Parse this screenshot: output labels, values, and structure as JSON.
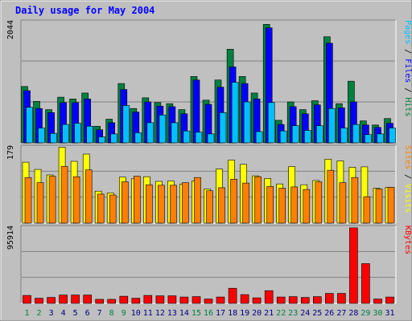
{
  "chart_data": {
    "type": "bar",
    "title": "Daily usage for May 2004",
    "categories": [
      "1",
      "2",
      "3",
      "4",
      "5",
      "6",
      "7",
      "8",
      "9",
      "10",
      "11",
      "12",
      "13",
      "14",
      "15",
      "16",
      "17",
      "18",
      "19",
      "20",
      "21",
      "22",
      "23",
      "24",
      "25",
      "26",
      "27",
      "28",
      "29",
      "30",
      "31"
    ],
    "weekend_days": [
      "1",
      "2",
      "8",
      "9",
      "15",
      "16",
      "22",
      "23",
      "29",
      "30"
    ],
    "panels": [
      {
        "id": "hits-files-pages",
        "y_max_label": "2044",
        "ylim": [
          0,
          2044
        ],
        "axis_label_parts": [
          {
            "text": "Pages",
            "color": "#00c0ff"
          },
          {
            "text": " / ",
            "color": "#000000"
          },
          {
            "text": "Files",
            "color": "#0000ff"
          },
          {
            "text": " / ",
            "color": "#000000"
          },
          {
            "text": "Hits",
            "color": "#008040"
          }
        ],
        "series": [
          {
            "name": "Hits",
            "color": "#008040",
            "values": [
              950,
              700,
              560,
              770,
              740,
              840,
              280,
              400,
              1000,
              580,
              760,
              680,
              660,
              560,
              1120,
              720,
              1060,
              1580,
              1120,
              840,
              2000,
              380,
              690,
              560,
              710,
              1790,
              660,
              1040,
              370,
              300,
              410
            ]
          },
          {
            "name": "Files",
            "color": "#0000ff",
            "values": [
              880,
              580,
              510,
              680,
              680,
              740,
              220,
              340,
              900,
              520,
              690,
              620,
              610,
              490,
              1060,
              650,
              940,
              1280,
              1000,
              740,
              1940,
              310,
              610,
              490,
              640,
              1680,
              590,
              690,
              300,
              260,
              330
            ]
          },
          {
            "name": "Pages",
            "color": "#00c0ff",
            "values": [
              600,
              250,
              160,
              310,
              330,
              280,
              100,
              150,
              630,
              170,
              340,
              470,
              340,
              200,
              180,
              150,
              510,
              1020,
              690,
              190,
              680,
              200,
              290,
              210,
              290,
              580,
              250,
              310,
              140,
              150,
              250
            ]
          }
        ]
      },
      {
        "id": "visits-sites",
        "y_max_label": "179",
        "ylim": [
          0,
          179
        ],
        "axis_label_parts": [
          {
            "text": "Sites",
            "color": "#ff8000"
          },
          {
            "text": " / ",
            "color": "#000000"
          },
          {
            "text": "Visits",
            "color": "#ffff00"
          }
        ],
        "series": [
          {
            "name": "Visits",
            "color": "#ffff00",
            "values": [
              143,
              126,
              113,
              178,
              145,
              162,
              75,
              71,
              108,
              104,
              109,
              98,
              99,
              91,
              99,
              80,
              127,
              148,
              138,
              111,
              105,
              92,
              133,
              90,
              100,
              150,
              146,
              131,
              132,
              82,
              84
            ]
          },
          {
            "name": "Sites",
            "color": "#ff8000",
            "values": [
              107,
              95,
              110,
              133,
              109,
              125,
              68,
              66,
              97,
              110,
              90,
              89,
              89,
              95,
              107,
              76,
              83,
              103,
              94,
              109,
              86,
              82,
              85,
              79,
              97,
              124,
              95,
              107,
              62,
              80,
              84
            ]
          }
        ]
      },
      {
        "id": "kbytes",
        "y_max_label": "95914",
        "ylim": [
          0,
          95914
        ],
        "axis_label_parts": [
          {
            "text": "KBytes",
            "color": "#ff0000"
          }
        ],
        "series": [
          {
            "name": "KBytes",
            "color": "#ff0000",
            "values": [
              10000,
              6500,
              7500,
              10500,
              10500,
              10500,
              5000,
              5000,
              9000,
              6500,
              10000,
              9500,
              9500,
              8000,
              8500,
              5500,
              8000,
              19000,
              11000,
              7000,
              16000,
              8000,
              8500,
              7500,
              8500,
              12500,
              12500,
              95000,
              50000,
              5500,
              8000
            ]
          }
        ]
      }
    ],
    "colors": {
      "background": "#c0c0c0",
      "frame": "#ffffff",
      "title": "#0000ff",
      "label_weekday": "#000080",
      "label_weekend": "#008040",
      "grid": "#808080"
    }
  }
}
